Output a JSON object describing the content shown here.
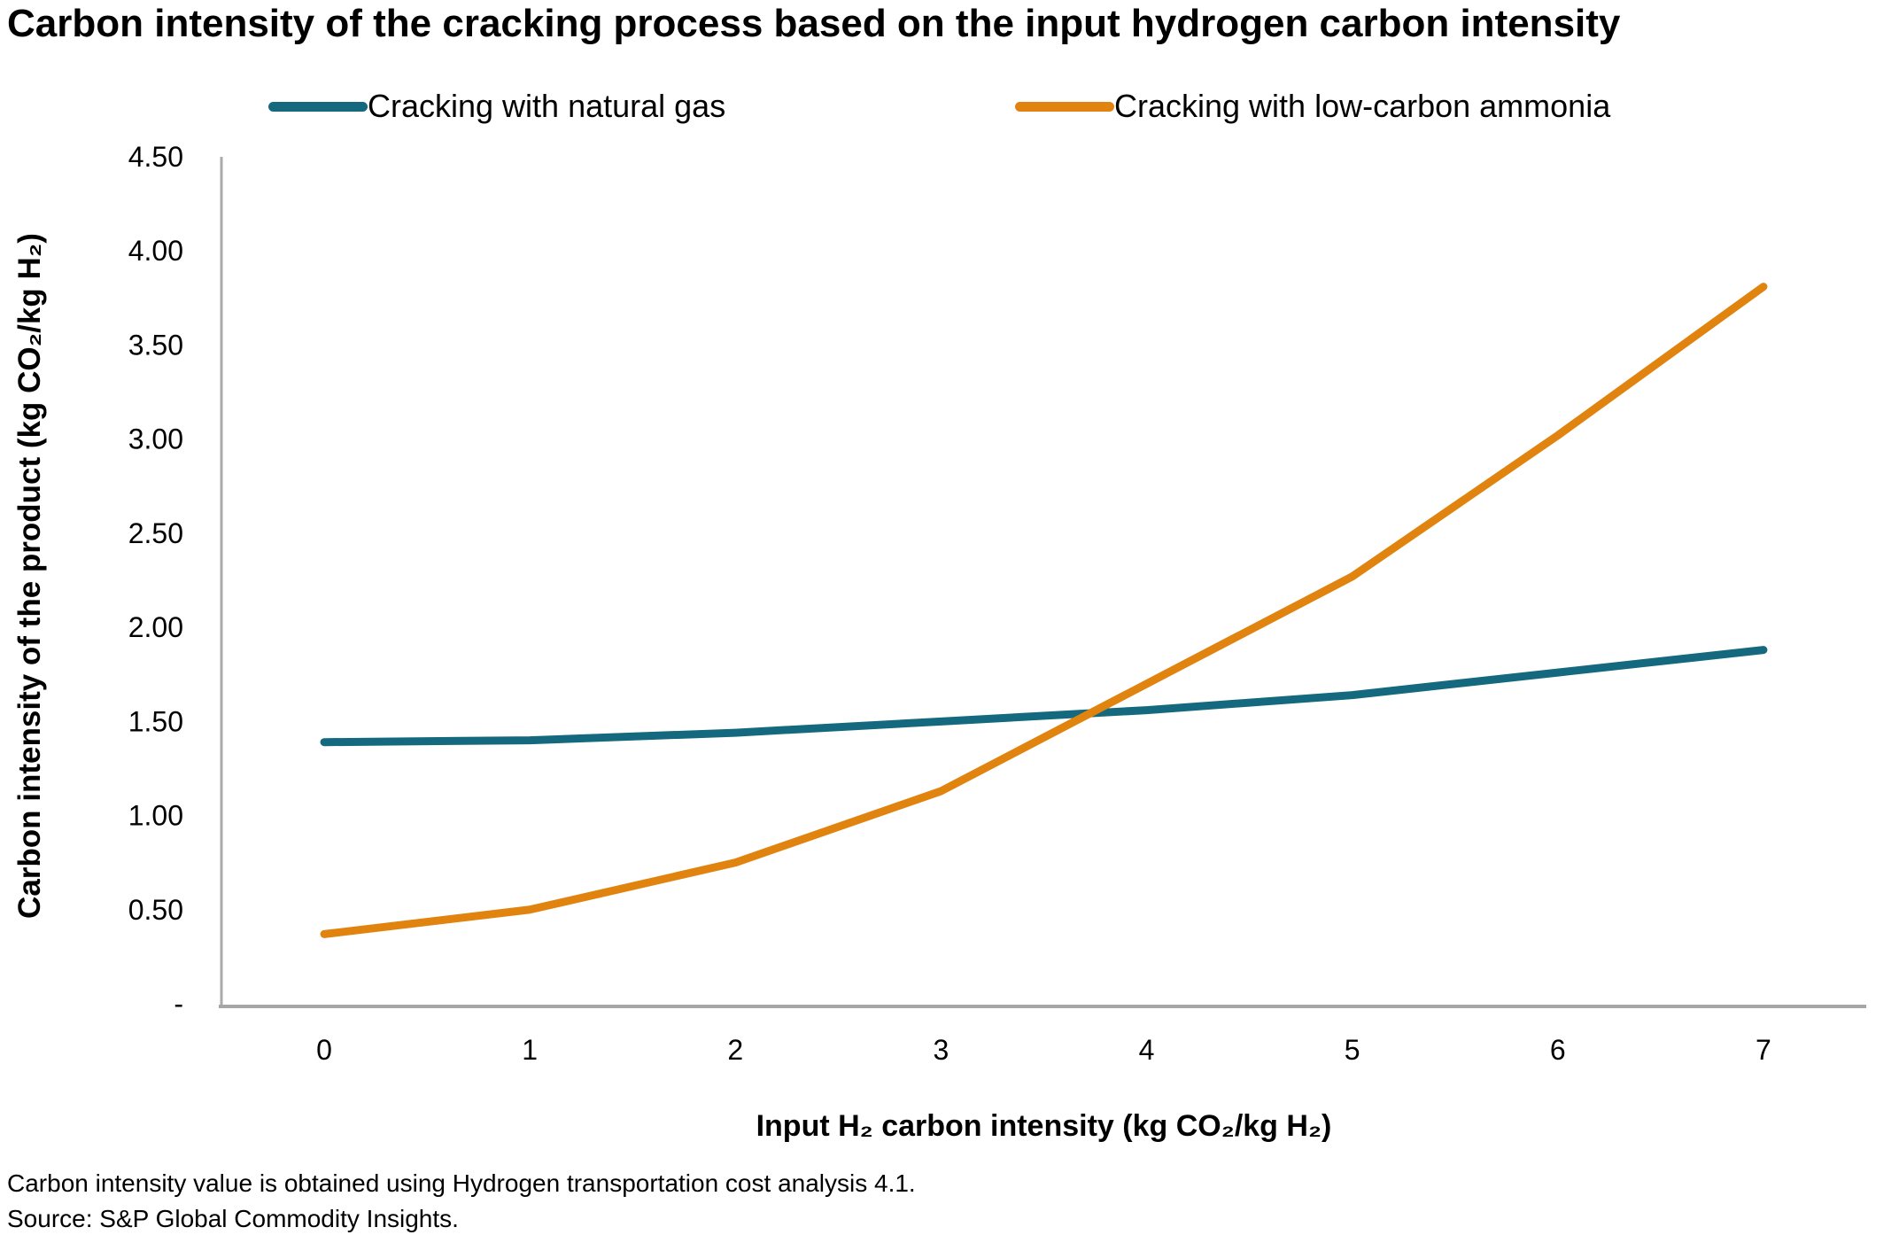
{
  "title": "Carbon intensity of the cracking process based on the input hydrogen carbon intensity",
  "footnotes": {
    "note": "Carbon intensity value is obtained using Hydrogen transportation cost analysis 4.1.",
    "source": "Source: S&P Global Commodity Insights."
  },
  "axis_color": "#A6A6A6",
  "chart_data": {
    "type": "line",
    "title": "Carbon intensity of the cracking process based on the input hydrogen carbon intensity",
    "xlabel": "Input H₂ carbon intensity (kg CO₂/kg H₂)",
    "ylabel": "Carbon intensity of the product (kg CO₂/kg H₂)",
    "x": [
      0,
      1,
      2,
      3,
      4,
      5,
      6,
      7
    ],
    "series": [
      {
        "name": "Cracking with natural gas",
        "color": "#15697E",
        "values": [
          1.39,
          1.4,
          1.44,
          1.5,
          1.56,
          1.64,
          1.76,
          1.88
        ]
      },
      {
        "name": "Cracking with low-carbon ammonia",
        "color": "#E0830F",
        "values": [
          0.37,
          0.5,
          0.75,
          1.13,
          1.7,
          2.27,
          3.02,
          3.81
        ]
      }
    ],
    "ylim": [
      0,
      4.5
    ],
    "yticks": [
      {
        "value": 4.5,
        "label": "4.50"
      },
      {
        "value": 4.0,
        "label": "4.00"
      },
      {
        "value": 3.5,
        "label": "3.50"
      },
      {
        "value": 3.0,
        "label": "3.00"
      },
      {
        "value": 2.5,
        "label": "2.50"
      },
      {
        "value": 2.0,
        "label": "2.00"
      },
      {
        "value": 1.5,
        "label": "1.50"
      },
      {
        "value": 1.0,
        "label": "1.00"
      },
      {
        "value": 0.5,
        "label": "0.50"
      },
      {
        "value": 0.0,
        "label": "-"
      }
    ],
    "xticks": [
      "0",
      "1",
      "2",
      "3",
      "4",
      "5",
      "6",
      "7"
    ],
    "legend_position": "top",
    "grid": false
  }
}
